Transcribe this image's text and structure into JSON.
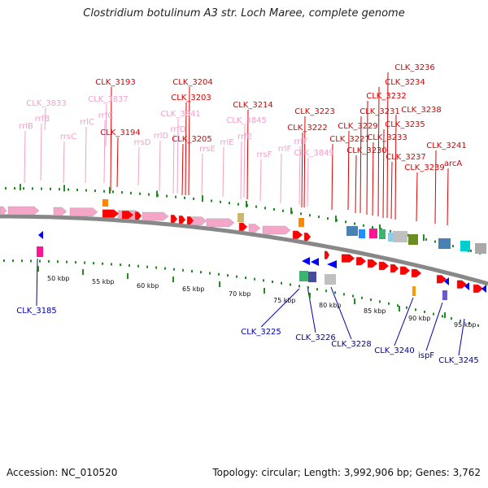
{
  "title": "Clostridium botulinum A3 str. Loch Maree, complete genome",
  "accession": "Accession: NC_010520",
  "topology": "Topology: circular; Length: 3,992,906 bp; Genes: 3,762",
  "colors": {
    "rrna": "#f4a6c9",
    "gene": "#ff0000",
    "reverse": "#0000ff",
    "locus_blue": "#0000aa",
    "tick": "#228b22",
    "backbone": "#888888"
  },
  "scale_labels": [
    "50 kbp",
    "55 kbp",
    "60 kbp",
    "65 kbp",
    "70 kbp",
    "75 kbp",
    "80 kbp",
    "85 kbp",
    "90 kbp",
    "95 kbp"
  ],
  "upper_labels": [
    {
      "text": "rrlB",
      "color": "pink"
    },
    {
      "text": "rrfB",
      "color": "pink"
    },
    {
      "text": "CLK_3833",
      "color": "pink"
    },
    {
      "text": "rrsC",
      "color": "pink"
    },
    {
      "text": "rrlC",
      "color": "pink"
    },
    {
      "text": "CLK_3837",
      "color": "pink"
    },
    {
      "text": "rrfC",
      "color": "pink"
    },
    {
      "text": "CLK_3193",
      "color": "red"
    },
    {
      "text": "CLK_3194",
      "color": "red"
    },
    {
      "text": "rrsD",
      "color": "pink"
    },
    {
      "text": "rrlD",
      "color": "pink"
    },
    {
      "text": "rrfD",
      "color": "pink"
    },
    {
      "text": "CLK_3841",
      "color": "pink"
    },
    {
      "text": "CLK_3204",
      "color": "red"
    },
    {
      "text": "CLK_3203",
      "color": "red"
    },
    {
      "text": "CLK_3205",
      "color": "red"
    },
    {
      "text": "rrsE",
      "color": "pink"
    },
    {
      "text": "rrlE",
      "color": "pink"
    },
    {
      "text": "CLK_3845",
      "color": "pink"
    },
    {
      "text": "rrfE",
      "color": "pink"
    },
    {
      "text": "CLK_3214",
      "color": "red"
    },
    {
      "text": "rrsF",
      "color": "pink"
    },
    {
      "text": "rrlF",
      "color": "pink"
    },
    {
      "text": "rrfF",
      "color": "pink"
    },
    {
      "text": "CLK_3849",
      "color": "pink"
    },
    {
      "text": "CLK_3223",
      "color": "red"
    },
    {
      "text": "CLK_3222",
      "color": "red"
    },
    {
      "text": "CLK_3227",
      "color": "red"
    },
    {
      "text": "CLK_3229",
      "color": "red"
    },
    {
      "text": "CLK_3230",
      "color": "red"
    },
    {
      "text": "CLK_3231",
      "color": "red"
    },
    {
      "text": "CLK_3232",
      "color": "red"
    },
    {
      "text": "CLK_3233",
      "color": "red"
    },
    {
      "text": "CLK_3234",
      "color": "red"
    },
    {
      "text": "CLK_3235",
      "color": "red"
    },
    {
      "text": "CLK_3236",
      "color": "red"
    },
    {
      "text": "CLK_3237",
      "color": "red"
    },
    {
      "text": "CLK_3238",
      "color": "red"
    },
    {
      "text": "CLK_3239",
      "color": "red"
    },
    {
      "text": "CLK_3241",
      "color": "red"
    },
    {
      "text": "arcA",
      "color": "red"
    }
  ],
  "lower_labels": [
    {
      "text": "CLK_3185"
    },
    {
      "text": "CLK_3225"
    },
    {
      "text": "CLK_3226"
    },
    {
      "text": "CLK_3228"
    },
    {
      "text": "CLK_3240"
    },
    {
      "text": "ispF"
    },
    {
      "text": "CLK_3245"
    }
  ]
}
